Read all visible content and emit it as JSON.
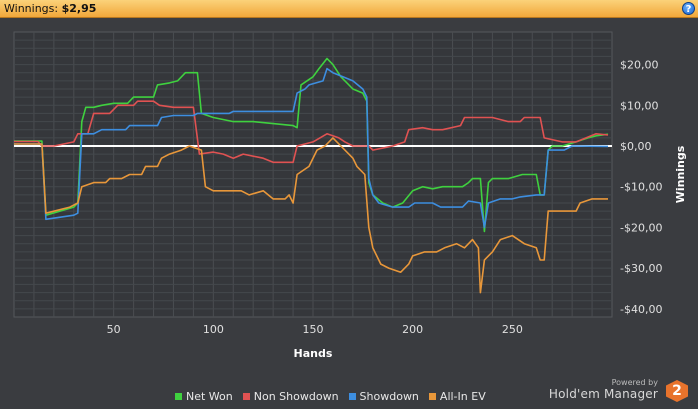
{
  "header": {
    "label": "Winnings:",
    "value": "$2,95",
    "help": "?"
  },
  "branding": {
    "powered": "Powered by",
    "name": "Hold'em Manager",
    "logo": "2"
  },
  "chart_data": {
    "type": "line",
    "xlabel": "Hands",
    "ylabel": "Winnings",
    "xlim": [
      0,
      300
    ],
    "ylim": [
      -42,
      28
    ],
    "xticks": [
      50,
      100,
      150,
      200,
      250
    ],
    "yticks": [
      20,
      10,
      0,
      -10,
      -20,
      -30,
      -40
    ],
    "ytick_labels": [
      "$20,00",
      "$10,00",
      "$0,00",
      "-$10,00",
      "-$20,00",
      "-$30,00",
      "-$40,00"
    ],
    "legend_position": "bottom",
    "grid": true,
    "series": [
      {
        "name": "Net Won",
        "color": "#3fd13f",
        "points": [
          [
            0,
            1.2
          ],
          [
            14,
            1.2
          ],
          [
            16,
            -17
          ],
          [
            30,
            -15
          ],
          [
            32,
            -14
          ],
          [
            34,
            6
          ],
          [
            36,
            9.5
          ],
          [
            40,
            9.5
          ],
          [
            44,
            10
          ],
          [
            50,
            10.5
          ],
          [
            57,
            10.5
          ],
          [
            60,
            12
          ],
          [
            70,
            12
          ],
          [
            72,
            15
          ],
          [
            78,
            15.5
          ],
          [
            82,
            16
          ],
          [
            86,
            18
          ],
          [
            92,
            18
          ],
          [
            94,
            8
          ],
          [
            100,
            7
          ],
          [
            110,
            6
          ],
          [
            120,
            6
          ],
          [
            130,
            5.5
          ],
          [
            140,
            5
          ],
          [
            142,
            4.5
          ],
          [
            144,
            15
          ],
          [
            150,
            17
          ],
          [
            153,
            19
          ],
          [
            157,
            21.5
          ],
          [
            160,
            20
          ],
          [
            164,
            17
          ],
          [
            170,
            14
          ],
          [
            175,
            13
          ],
          [
            177,
            11
          ],
          [
            178,
            -9
          ],
          [
            180,
            -12
          ],
          [
            185,
            -14
          ],
          [
            190,
            -15
          ],
          [
            195,
            -14
          ],
          [
            200,
            -11
          ],
          [
            205,
            -10
          ],
          [
            210,
            -10.5
          ],
          [
            215,
            -10
          ],
          [
            225,
            -10
          ],
          [
            228,
            -9
          ],
          [
            230,
            -8
          ],
          [
            234,
            -8
          ],
          [
            236,
            -21
          ],
          [
            238,
            -9
          ],
          [
            240,
            -8
          ],
          [
            248,
            -8
          ],
          [
            255,
            -7
          ],
          [
            262,
            -7
          ],
          [
            264,
            -12
          ],
          [
            266,
            -12
          ],
          [
            268,
            -1
          ],
          [
            270,
            0
          ],
          [
            275,
            0
          ],
          [
            282,
            1
          ],
          [
            288,
            2
          ],
          [
            292,
            2.5
          ],
          [
            298,
            2.9
          ]
        ]
      },
      {
        "name": "Non Showdown",
        "color": "#e05252",
        "points": [
          [
            0,
            1.1
          ],
          [
            12,
            1.1
          ],
          [
            14,
            0
          ],
          [
            20,
            0
          ],
          [
            30,
            1
          ],
          [
            32,
            3
          ],
          [
            37,
            3
          ],
          [
            40,
            8
          ],
          [
            48,
            8
          ],
          [
            52,
            10
          ],
          [
            60,
            10
          ],
          [
            62,
            11
          ],
          [
            70,
            11
          ],
          [
            73,
            10
          ],
          [
            80,
            9.5
          ],
          [
            90,
            9.5
          ],
          [
            93,
            -2
          ],
          [
            100,
            -1.5
          ],
          [
            105,
            -2
          ],
          [
            110,
            -3
          ],
          [
            115,
            -2
          ],
          [
            125,
            -3
          ],
          [
            130,
            -4
          ],
          [
            140,
            -4
          ],
          [
            142,
            0
          ],
          [
            150,
            1
          ],
          [
            157,
            3
          ],
          [
            163,
            2
          ],
          [
            166,
            1
          ],
          [
            170,
            0
          ],
          [
            178,
            0
          ],
          [
            180,
            -1
          ],
          [
            190,
            0
          ],
          [
            196,
            1
          ],
          [
            198,
            4
          ],
          [
            205,
            4.5
          ],
          [
            210,
            4
          ],
          [
            215,
            4
          ],
          [
            224,
            5
          ],
          [
            226,
            7
          ],
          [
            240,
            7
          ],
          [
            248,
            6
          ],
          [
            254,
            6
          ],
          [
            256,
            7
          ],
          [
            264,
            7
          ],
          [
            266,
            2
          ],
          [
            275,
            1
          ],
          [
            282,
            1
          ],
          [
            292,
            3
          ],
          [
            298,
            2.7
          ]
        ]
      },
      {
        "name": "Showdown",
        "color": "#3d8ee0",
        "points": [
          [
            0,
            0.5
          ],
          [
            14,
            0.5
          ],
          [
            16,
            -18
          ],
          [
            30,
            -17
          ],
          [
            32,
            -16.5
          ],
          [
            34,
            3
          ],
          [
            40,
            3
          ],
          [
            44,
            4
          ],
          [
            56,
            4
          ],
          [
            58,
            5
          ],
          [
            72,
            5
          ],
          [
            74,
            7
          ],
          [
            80,
            7.5
          ],
          [
            90,
            7.5
          ],
          [
            92,
            8
          ],
          [
            108,
            8
          ],
          [
            110,
            8.5
          ],
          [
            140,
            8.5
          ],
          [
            142,
            13
          ],
          [
            146,
            14
          ],
          [
            148,
            15
          ],
          [
            155,
            16
          ],
          [
            157,
            19
          ],
          [
            160,
            18
          ],
          [
            165,
            17
          ],
          [
            170,
            16
          ],
          [
            175,
            14
          ],
          [
            177,
            12
          ],
          [
            178,
            -8
          ],
          [
            180,
            -12
          ],
          [
            183,
            -14
          ],
          [
            190,
            -15
          ],
          [
            198,
            -15
          ],
          [
            201,
            -14
          ],
          [
            210,
            -14
          ],
          [
            214,
            -15
          ],
          [
            225,
            -15
          ],
          [
            228,
            -13.5
          ],
          [
            234,
            -14
          ],
          [
            236,
            -20
          ],
          [
            238,
            -14
          ],
          [
            244,
            -13
          ],
          [
            250,
            -13
          ],
          [
            254,
            -12.5
          ],
          [
            262,
            -12
          ],
          [
            266,
            -12
          ],
          [
            268,
            -1
          ],
          [
            276,
            -1
          ],
          [
            280,
            0
          ],
          [
            298,
            -0.1
          ]
        ]
      },
      {
        "name": "All-In EV",
        "color": "#e8973a",
        "points": [
          [
            0,
            0.5
          ],
          [
            14,
            0.5
          ],
          [
            16,
            -16.5
          ],
          [
            28,
            -15
          ],
          [
            32,
            -14
          ],
          [
            34,
            -10
          ],
          [
            40,
            -9
          ],
          [
            46,
            -9
          ],
          [
            48,
            -8
          ],
          [
            54,
            -8
          ],
          [
            58,
            -7
          ],
          [
            64,
            -7
          ],
          [
            66,
            -5
          ],
          [
            72,
            -5
          ],
          [
            74,
            -3
          ],
          [
            78,
            -2
          ],
          [
            84,
            -1
          ],
          [
            88,
            0
          ],
          [
            94,
            -1
          ],
          [
            96,
            -10
          ],
          [
            100,
            -11
          ],
          [
            110,
            -11
          ],
          [
            114,
            -11
          ],
          [
            118,
            -12
          ],
          [
            125,
            -11
          ],
          [
            130,
            -13
          ],
          [
            136,
            -13
          ],
          [
            138,
            -12
          ],
          [
            140,
            -14
          ],
          [
            142,
            -7
          ],
          [
            148,
            -5
          ],
          [
            152,
            -1
          ],
          [
            156,
            0
          ],
          [
            160,
            2
          ],
          [
            164,
            0
          ],
          [
            170,
            -3
          ],
          [
            172,
            -5
          ],
          [
            176,
            -7
          ],
          [
            178,
            -20
          ],
          [
            180,
            -25
          ],
          [
            184,
            -29
          ],
          [
            188,
            -30
          ],
          [
            194,
            -31
          ],
          [
            198,
            -29
          ],
          [
            200,
            -27
          ],
          [
            206,
            -26
          ],
          [
            212,
            -26
          ],
          [
            216,
            -25
          ],
          [
            222,
            -24
          ],
          [
            226,
            -25
          ],
          [
            230,
            -23
          ],
          [
            233,
            -25
          ],
          [
            234,
            -36
          ],
          [
            236,
            -28
          ],
          [
            238,
            -27
          ],
          [
            240,
            -26
          ],
          [
            244,
            -23
          ],
          [
            250,
            -22
          ],
          [
            256,
            -24
          ],
          [
            262,
            -25
          ],
          [
            264,
            -28
          ],
          [
            266,
            -28
          ],
          [
            268,
            -16
          ],
          [
            272,
            -16
          ],
          [
            282,
            -16
          ],
          [
            284,
            -14
          ],
          [
            290,
            -13
          ],
          [
            298,
            -13
          ]
        ]
      }
    ]
  }
}
